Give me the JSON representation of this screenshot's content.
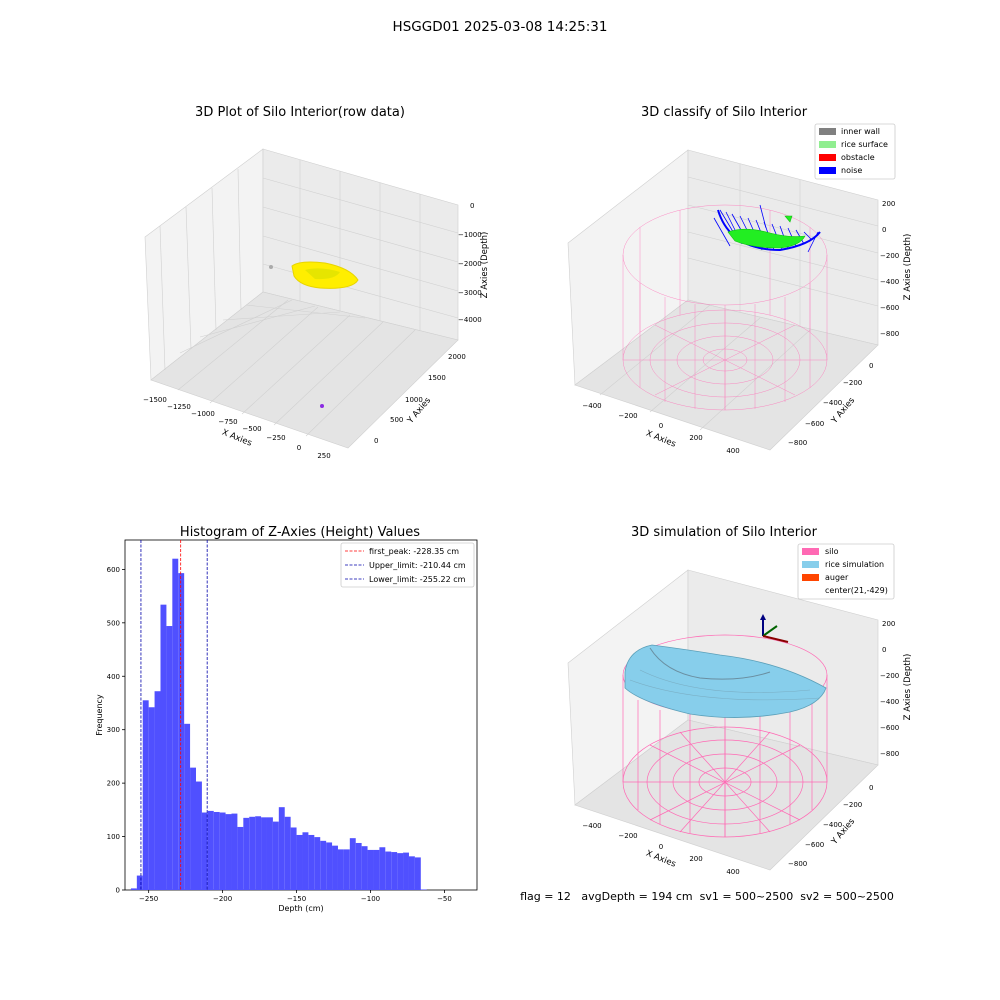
{
  "figure": {
    "suptitle": "HSGGD01 2025-03-08 14:25:31",
    "status_line": "flag = 12   avgDepth = 194 cm  sv1 = 500~2500  sv2 = 500~2500"
  },
  "colors": {
    "point_yellow": "#ffee00",
    "inner_wall": "#808080",
    "rice_surface": "#90ee90",
    "obstacle": "#ff0000",
    "noise": "#0000ff",
    "silo_wire": "#ff69b4",
    "rice_simulation": "#87ceeb",
    "auger": "#ff4500",
    "hist_bar": "#5050ff",
    "first_peak_line": "#ff0000",
    "limit_line": "#0000aa",
    "pane": "#f2f2f2",
    "grid": "#d0d0d0"
  },
  "chart_data": [
    {
      "type": "scatter",
      "subtype": "3d",
      "title": "3D Plot of Silo Interior(row data)",
      "xlabel": "X Axies",
      "ylabel": "Y Axies",
      "zlabel": "Z Axies (Depth)",
      "x_ticks": [
        "−1500",
        "−1250",
        "−1000",
        "−750",
        "−500",
        "−250",
        "0",
        "250"
      ],
      "y_ticks": [
        "0",
        "500",
        "1000",
        "1500",
        "2000"
      ],
      "z_ticks": [
        "0",
        "−1000",
        "−2000",
        "−3000",
        "−4000"
      ],
      "grid": true,
      "series": [
        {
          "color": "yellow",
          "points": "dense surface cluster near x≈-500, z≈-2000"
        },
        {
          "color": "gray",
          "points": [
            {
              "x": -1500,
              "y": 2000,
              "z": -2000
            }
          ]
        },
        {
          "color": "purple",
          "points": [
            {
              "x": 0,
              "y": 0,
              "z": -4000
            }
          ]
        }
      ]
    },
    {
      "type": "scatter",
      "subtype": "3d",
      "title": "3D classify of Silo Interior",
      "xlabel": "X Axies",
      "ylabel": "Y Axies",
      "zlabel": "Z Axies (Depth)",
      "x_ticks": [
        "−400",
        "−200",
        "0",
        "200",
        "400"
      ],
      "y_ticks": [
        "0",
        "−200",
        "−400",
        "−600",
        "−800"
      ],
      "z_ticks": [
        "200",
        "0",
        "−200",
        "−400",
        "−600",
        "−800"
      ],
      "grid": true,
      "legend_position": "top-right",
      "legend": [
        "inner wall",
        "rice surface",
        "obstacle",
        "noise"
      ]
    },
    {
      "type": "bar",
      "title": "Histogram of Z-Axies (Height) Values",
      "xlabel": "Depth (cm)",
      "ylabel": "Frequency",
      "xlim": [
        -266,
        -28
      ],
      "ylim": [
        0,
        655
      ],
      "x_ticks": [
        -250,
        -200,
        -150,
        -100,
        -50
      ],
      "x_tick_labels": [
        "−250",
        "−200",
        "−150",
        "−100",
        "−50"
      ],
      "y_ticks": [
        0,
        100,
        200,
        300,
        400,
        500,
        600
      ],
      "y_tick_labels": [
        "0",
        "100",
        "200",
        "300",
        "400",
        "500",
        "600"
      ],
      "bin_start": -262,
      "bin_width": 4,
      "values": [
        3,
        27,
        355,
        342,
        372,
        534,
        494,
        620,
        593,
        311,
        229,
        203,
        145,
        148,
        146,
        145,
        142,
        143,
        118,
        135,
        137,
        138,
        136,
        136,
        128,
        155,
        137,
        117,
        103,
        108,
        103,
        99,
        92,
        89,
        83,
        76,
        76,
        97,
        88,
        82,
        75,
        75,
        80,
        72,
        71,
        69,
        70,
        63,
        61,
        1
      ],
      "vlines": [
        {
          "label": "first_peak: -228.35 cm",
          "x": -228.35,
          "color": "red"
        },
        {
          "label": "Upper_limit: -210.44 cm",
          "x": -210.44,
          "color": "blue"
        },
        {
          "label": "Lower_limit: -255.22 cm",
          "x": -255.22,
          "color": "blue"
        }
      ],
      "legend_position": "top-right"
    },
    {
      "type": "area",
      "subtype": "3d",
      "title": "3D simulation of Silo Interior",
      "xlabel": "X Axies",
      "ylabel": "Y Axies",
      "zlabel": "Z Axies (Depth)",
      "x_ticks": [
        "−400",
        "−200",
        "0",
        "200",
        "400"
      ],
      "y_ticks": [
        "0",
        "−200",
        "−400",
        "−600",
        "−800"
      ],
      "z_ticks": [
        "200",
        "0",
        "−200",
        "−400",
        "−600",
        "−800"
      ],
      "grid": true,
      "legend_position": "top-right",
      "legend": [
        "silo",
        "rice simulation",
        "auger",
        "center(21,-429)"
      ]
    }
  ]
}
